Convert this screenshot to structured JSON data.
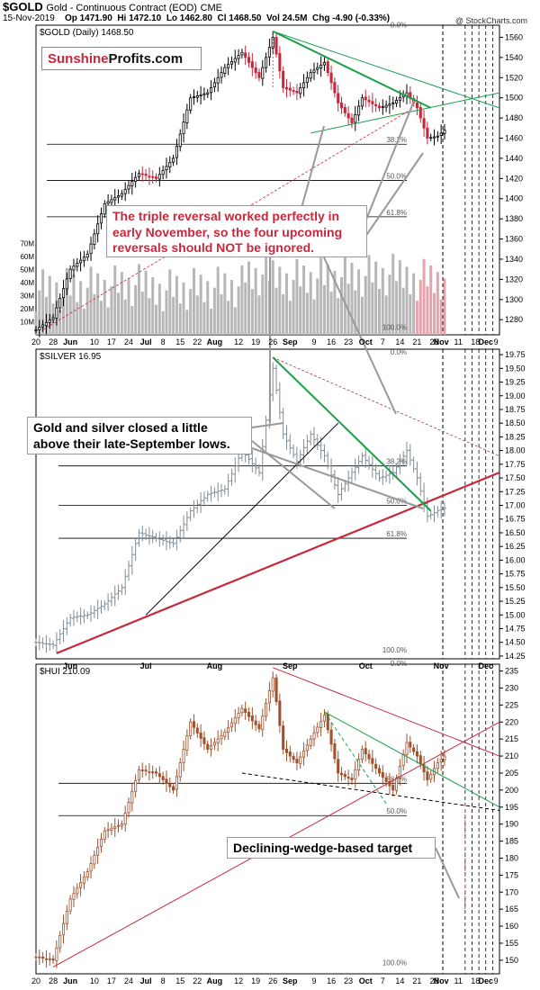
{
  "header": {
    "symbol": "$GOLD",
    "description": "Gold - Continuous Contract (EOD)",
    "exchange": "CME",
    "date": "15-Nov-2019",
    "op": "Op 1471.90",
    "hi": "Hi 1472.10",
    "lo": "Lo 1462.80",
    "cl": "Cl 1468.50",
    "vol": "Vol 24.5M",
    "chg": "Chg -4.90 (-0.33%)",
    "credit": "@ StockCharts.com"
  },
  "logo": {
    "part1": "Sunshine",
    "part2": "Profits.com"
  },
  "callouts": {
    "gold": "The triple reversal worked perfectly in early November, so the four upcoming reversals should NOT be ignored.",
    "silver": "Gold and silver closed a little above their late-September lows.",
    "hui": "Declining-wedge-based target"
  },
  "colors": {
    "red": "#c8283b",
    "green": "#1aa04a",
    "hui_candle": "#a0522d",
    "silver_bar": "#7f8c95",
    "gold_up": "#000000",
    "gold_down": "#c8283b"
  },
  "chart_data": [
    {
      "type": "candlestick",
      "panel": "gold",
      "label": "$GOLD (Daily) 1468.50",
      "ylim": [
        1265,
        1572
      ],
      "y_ticks": [
        1280,
        1300,
        1320,
        1340,
        1360,
        1380,
        1400,
        1420,
        1440,
        1460,
        1480,
        1500,
        1520,
        1540,
        1560
      ],
      "volume_ticks": [
        "10M",
        "20M",
        "30M",
        "40M",
        "50M",
        "60M",
        "70M"
      ],
      "volume_lim": [
        0,
        75
      ],
      "fib_labels": [
        "0.0%",
        "38.2%",
        "50.0%",
        "61.8%",
        "100.0%"
      ],
      "fib_levels": [
        1568,
        1454,
        1418,
        1382,
        1268
      ],
      "key_points": [
        {
          "t": 0,
          "v": 1270
        },
        {
          "t": 5,
          "v": 1282
        },
        {
          "t": 10,
          "v": 1330
        },
        {
          "t": 15,
          "v": 1345
        },
        {
          "t": 20,
          "v": 1395
        },
        {
          "t": 25,
          "v": 1405
        },
        {
          "t": 30,
          "v": 1425
        },
        {
          "t": 35,
          "v": 1420
        },
        {
          "t": 40,
          "v": 1440
        },
        {
          "t": 45,
          "v": 1500
        },
        {
          "t": 50,
          "v": 1505
        },
        {
          "t": 55,
          "v": 1530
        },
        {
          "t": 60,
          "v": 1545
        },
        {
          "t": 65,
          "v": 1520
        },
        {
          "t": 69,
          "v": 1560
        },
        {
          "t": 72,
          "v": 1510
        },
        {
          "t": 76,
          "v": 1505
        },
        {
          "t": 80,
          "v": 1525
        },
        {
          "t": 84,
          "v": 1535
        },
        {
          "t": 88,
          "v": 1495
        },
        {
          "t": 92,
          "v": 1475
        },
        {
          "t": 95,
          "v": 1500
        },
        {
          "t": 100,
          "v": 1490
        },
        {
          "t": 104,
          "v": 1495
        },
        {
          "t": 108,
          "v": 1505
        },
        {
          "t": 111,
          "v": 1490
        },
        {
          "t": 114,
          "v": 1460
        },
        {
          "t": 117,
          "v": 1462
        },
        {
          "t": 119,
          "v": 1468
        }
      ]
    },
    {
      "type": "ohlc",
      "panel": "silver",
      "label": "$SILVER 16.95",
      "ylim": [
        14.2,
        19.85
      ],
      "y_ticks": [
        14.25,
        14.5,
        14.75,
        15.0,
        15.25,
        15.5,
        15.75,
        16.0,
        16.25,
        16.5,
        16.75,
        17.0,
        17.25,
        17.5,
        17.75,
        18.0,
        18.25,
        18.5,
        18.75,
        19.0,
        19.25,
        19.5,
        19.75
      ],
      "fib_labels": [
        "0.0%",
        "38.2%",
        "50.0%",
        "61.8%",
        "100.0%"
      ],
      "fib_levels": [
        19.72,
        17.72,
        17.0,
        16.4,
        14.28
      ],
      "key_points": [
        {
          "t": 0,
          "v": 14.5
        },
        {
          "t": 5,
          "v": 14.45
        },
        {
          "t": 10,
          "v": 14.95
        },
        {
          "t": 15,
          "v": 15.0
        },
        {
          "t": 20,
          "v": 15.2
        },
        {
          "t": 25,
          "v": 15.5
        },
        {
          "t": 30,
          "v": 16.5
        },
        {
          "t": 35,
          "v": 16.4
        },
        {
          "t": 40,
          "v": 16.3
        },
        {
          "t": 45,
          "v": 16.9
        },
        {
          "t": 50,
          "v": 17.2
        },
        {
          "t": 55,
          "v": 17.3
        },
        {
          "t": 60,
          "v": 18.0
        },
        {
          "t": 65,
          "v": 17.6
        },
        {
          "t": 69,
          "v": 19.5
        },
        {
          "t": 72,
          "v": 18.3
        },
        {
          "t": 76,
          "v": 17.8
        },
        {
          "t": 80,
          "v": 18.3
        },
        {
          "t": 84,
          "v": 17.9
        },
        {
          "t": 88,
          "v": 17.2
        },
        {
          "t": 92,
          "v": 17.6
        },
        {
          "t": 95,
          "v": 17.9
        },
        {
          "t": 100,
          "v": 17.5
        },
        {
          "t": 104,
          "v": 17.6
        },
        {
          "t": 108,
          "v": 18.0
        },
        {
          "t": 111,
          "v": 17.5
        },
        {
          "t": 114,
          "v": 16.8
        },
        {
          "t": 117,
          "v": 16.9
        },
        {
          "t": 119,
          "v": 16.95
        }
      ]
    },
    {
      "type": "candlestick",
      "panel": "hui",
      "label": "$HUI 210.09",
      "ylim": [
        146,
        237
      ],
      "y_ticks": [
        150,
        155,
        160,
        165,
        170,
        175,
        180,
        185,
        190,
        195,
        200,
        205,
        210,
        215,
        220,
        225,
        230,
        235
      ],
      "fib_labels": [
        "0.0%",
        "38.2%",
        "50.0%",
        "100.0%"
      ],
      "fib_levels": [
        236,
        202,
        192.5,
        148
      ],
      "key_points": [
        {
          "t": 0,
          "v": 151
        },
        {
          "t": 5,
          "v": 150
        },
        {
          "t": 10,
          "v": 168
        },
        {
          "t": 15,
          "v": 176
        },
        {
          "t": 20,
          "v": 188
        },
        {
          "t": 25,
          "v": 190
        },
        {
          "t": 30,
          "v": 206
        },
        {
          "t": 35,
          "v": 205
        },
        {
          "t": 40,
          "v": 200
        },
        {
          "t": 45,
          "v": 220
        },
        {
          "t": 50,
          "v": 212
        },
        {
          "t": 55,
          "v": 217
        },
        {
          "t": 60,
          "v": 224
        },
        {
          "t": 65,
          "v": 218
        },
        {
          "t": 69,
          "v": 233
        },
        {
          "t": 72,
          "v": 212
        },
        {
          "t": 76,
          "v": 208
        },
        {
          "t": 80,
          "v": 215
        },
        {
          "t": 84,
          "v": 222
        },
        {
          "t": 88,
          "v": 205
        },
        {
          "t": 92,
          "v": 203
        },
        {
          "t": 95,
          "v": 212
        },
        {
          "t": 100,
          "v": 205
        },
        {
          "t": 104,
          "v": 200
        },
        {
          "t": 108,
          "v": 214
        },
        {
          "t": 111,
          "v": 210
        },
        {
          "t": 114,
          "v": 203
        },
        {
          "t": 117,
          "v": 208
        },
        {
          "t": 119,
          "v": 210
        }
      ]
    }
  ],
  "x_axis_labels": [
    "20",
    "28",
    "Jun",
    "10",
    "17",
    "24",
    "Jul",
    "8",
    "15",
    "22",
    "Aug",
    "12",
    "19",
    "26",
    "Sep",
    "9",
    "16",
    "23",
    "Oct",
    "7",
    "14",
    "21",
    "28",
    "Nov",
    "11",
    "18",
    "Dec",
    "9"
  ],
  "x_axis_labels_silver": [
    "Jun",
    "Jul",
    "Aug",
    "Sep",
    "Oct",
    "Nov",
    "Dec"
  ]
}
